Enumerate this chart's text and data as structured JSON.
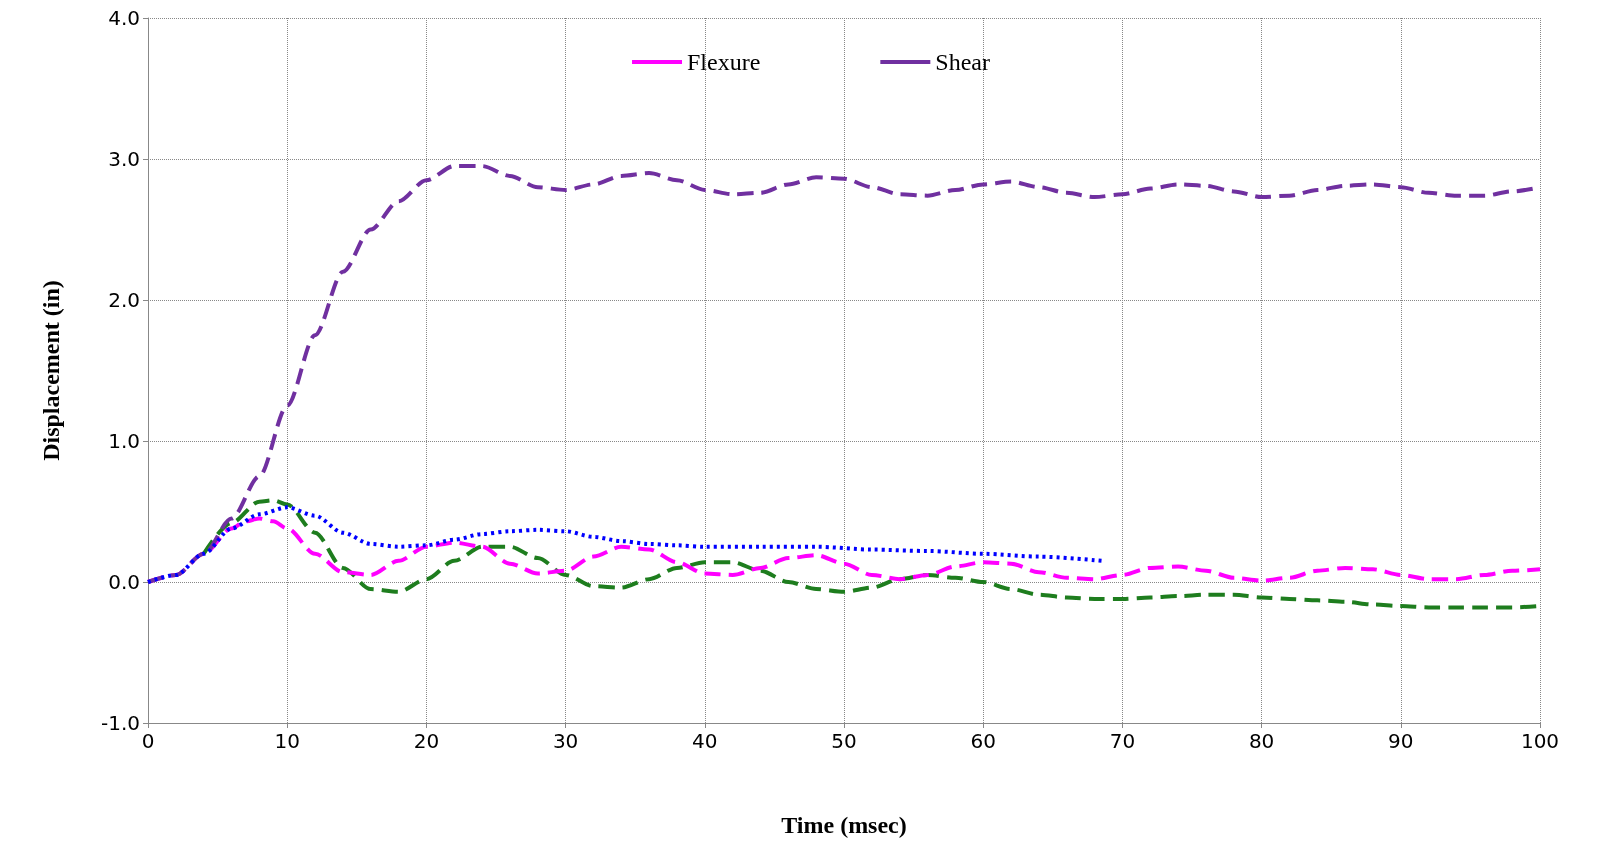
{
  "chart_data": {
    "type": "line",
    "xlabel": "Time (msec)",
    "ylabel": "Displacement (in)",
    "xlim": [
      0,
      100
    ],
    "xticks": [
      0,
      10,
      20,
      30,
      40,
      50,
      60,
      70,
      80,
      90,
      100
    ],
    "ylim": [
      -1,
      4
    ],
    "yticks": [
      {
        "value": -1,
        "label": "-1.0"
      },
      {
        "value": 0,
        "label": "0.0"
      },
      {
        "value": 1,
        "label": "1.0"
      },
      {
        "value": 2,
        "label": "2.0"
      },
      {
        "value": 3,
        "label": "3.0"
      },
      {
        "value": 4,
        "label": "4.0"
      }
    ],
    "grid": true,
    "legend": "top",
    "marker": "none",
    "series": [
      {
        "color": "#1e7d1e",
        "line_style": "dashed",
        "x": [
          4,
          6,
          8,
          9,
          10,
          12,
          14,
          16,
          18,
          20,
          22,
          24,
          26,
          28,
          30,
          32,
          34,
          36,
          38,
          40,
          42,
          44,
          46,
          48,
          50,
          52,
          54,
          56,
          58,
          60,
          62,
          64,
          66,
          68,
          70,
          72,
          74,
          76,
          78,
          80,
          82,
          84,
          86,
          88,
          90,
          92,
          94,
          96,
          98,
          100
        ],
        "values": [
          0.2,
          0.42,
          0.57,
          0.58,
          0.55,
          0.35,
          0.1,
          -0.05,
          -0.07,
          0.02,
          0.15,
          0.25,
          0.25,
          0.17,
          0.05,
          -0.03,
          -0.04,
          0.02,
          0.1,
          0.14,
          0.14,
          0.08,
          0,
          -0.05,
          -0.07,
          -0.04,
          0.02,
          0.05,
          0.03,
          0,
          -0.05,
          -0.09,
          -0.11,
          -0.12,
          -0.12,
          -0.11,
          -0.1,
          -0.09,
          -0.09,
          -0.11,
          -0.12,
          -0.13,
          -0.14,
          -0.16,
          -0.17,
          -0.18,
          -0.18,
          -0.18,
          -0.18,
          -0.17
        ]
      },
      {
        "name": "Flexure",
        "color": "#ff00ff",
        "line_style": "dashed",
        "x": [
          0,
          2,
          4,
          6,
          7,
          8,
          9,
          10,
          12,
          14,
          16,
          18,
          20,
          22,
          24,
          26,
          28,
          30,
          32,
          34,
          36,
          38,
          40,
          42,
          44,
          46,
          48,
          50,
          52,
          54,
          56,
          58,
          60,
          62,
          64,
          66,
          68,
          70,
          72,
          74,
          76,
          78,
          80,
          82,
          84,
          86,
          88,
          90,
          92,
          94,
          96,
          98,
          100
        ],
        "values": [
          0,
          0.05,
          0.2,
          0.38,
          0.43,
          0.45,
          0.43,
          0.38,
          0.2,
          0.07,
          0.05,
          0.15,
          0.25,
          0.28,
          0.25,
          0.13,
          0.06,
          0.08,
          0.18,
          0.25,
          0.23,
          0.14,
          0.06,
          0.05,
          0.1,
          0.17,
          0.19,
          0.13,
          0.05,
          0.02,
          0.05,
          0.11,
          0.14,
          0.13,
          0.07,
          0.03,
          0.02,
          0.05,
          0.1,
          0.11,
          0.08,
          0.03,
          0.01,
          0.03,
          0.08,
          0.1,
          0.09,
          0.05,
          0.02,
          0.02,
          0.05,
          0.08,
          0.09
        ]
      },
      {
        "name": "Shear",
        "color": "#7030a0",
        "line_style": "dashed",
        "x": [
          0,
          2,
          4,
          6,
          8,
          10,
          12,
          14,
          16,
          18,
          20,
          22,
          24,
          26,
          28,
          30,
          32,
          34,
          36,
          38,
          40,
          42,
          44,
          46,
          48,
          50,
          52,
          54,
          56,
          58,
          60,
          62,
          64,
          66,
          68,
          70,
          72,
          74,
          76,
          78,
          80,
          82,
          84,
          86,
          88,
          90,
          92,
          94,
          96,
          98,
          100
        ],
        "values": [
          0,
          0.05,
          0.2,
          0.45,
          0.75,
          1.25,
          1.75,
          2.2,
          2.5,
          2.7,
          2.85,
          2.95,
          2.95,
          2.88,
          2.8,
          2.78,
          2.82,
          2.88,
          2.9,
          2.85,
          2.78,
          2.75,
          2.76,
          2.82,
          2.87,
          2.86,
          2.8,
          2.75,
          2.74,
          2.78,
          2.82,
          2.84,
          2.8,
          2.76,
          2.73,
          2.75,
          2.79,
          2.82,
          2.81,
          2.77,
          2.73,
          2.74,
          2.78,
          2.81,
          2.82,
          2.8,
          2.76,
          2.74,
          2.74,
          2.77,
          2.8
        ]
      },
      {
        "color": "#0000ff",
        "line_style": "dotted",
        "x": [
          0,
          2,
          4,
          6,
          8,
          10,
          12,
          14,
          16,
          18,
          20,
          22,
          24,
          26,
          28,
          30,
          32,
          34,
          36,
          38,
          40,
          44,
          48,
          52,
          56,
          60,
          64,
          68.5
        ],
        "values": [
          0,
          0.05,
          0.2,
          0.38,
          0.48,
          0.53,
          0.47,
          0.35,
          0.27,
          0.25,
          0.26,
          0.3,
          0.34,
          0.36,
          0.37,
          0.36,
          0.32,
          0.29,
          0.27,
          0.26,
          0.25,
          0.25,
          0.25,
          0.23,
          0.22,
          0.2,
          0.18,
          0.15
        ]
      }
    ]
  }
}
